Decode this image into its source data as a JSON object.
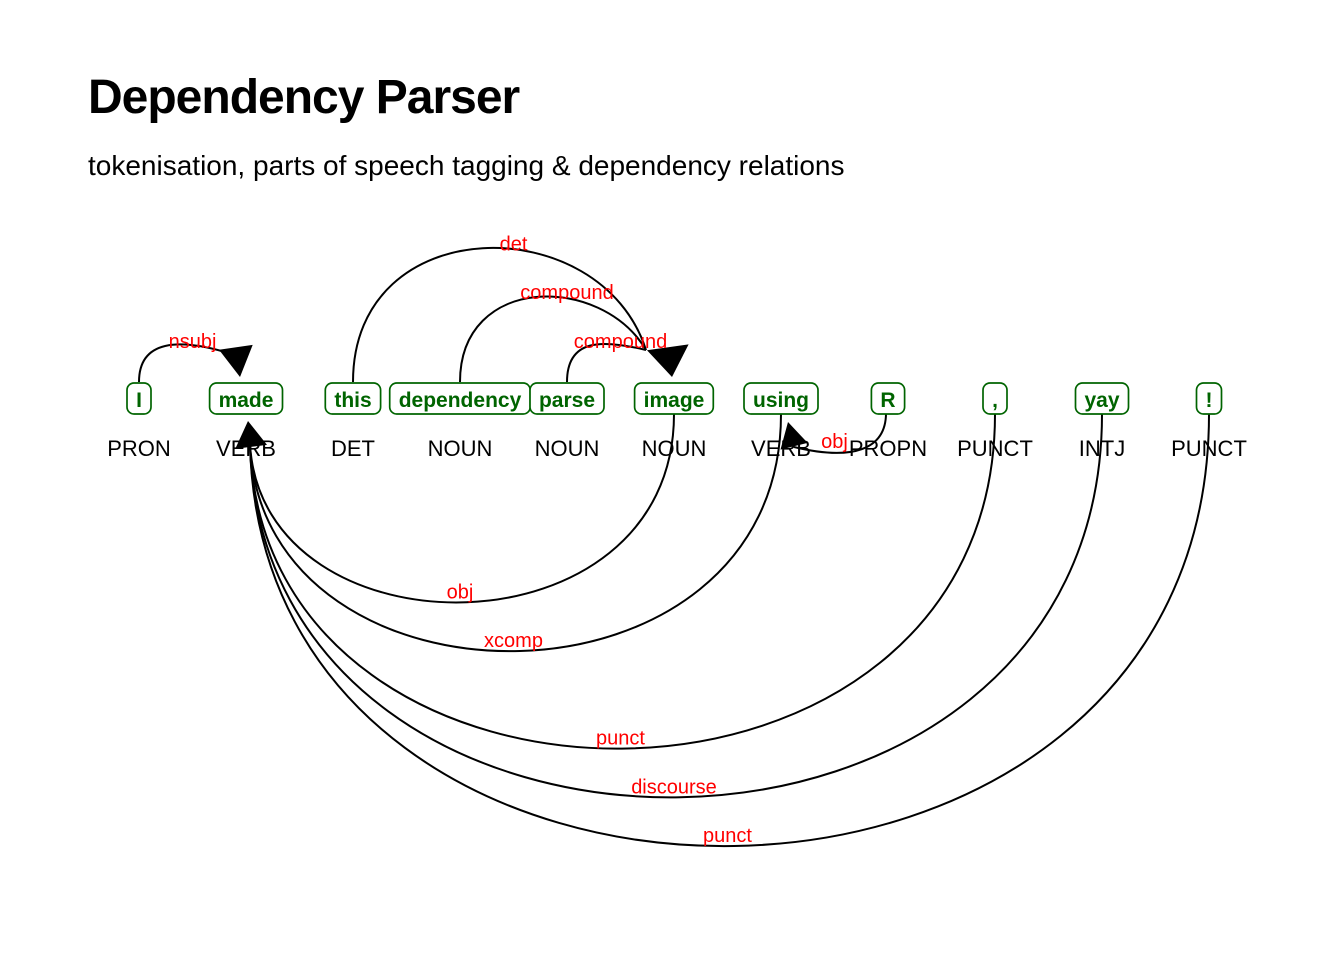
{
  "header": {
    "title": "Dependency Parser",
    "subtitle": "tokenisation, parts of speech tagging & dependency relations"
  },
  "colors": {
    "token_text": "#006400",
    "token_box_border": "#006400",
    "token_box_fill": "#ffffff",
    "pos_text": "#000000",
    "relation_label": "#ff0000",
    "arc_line": "#000000",
    "arrowhead": "#000000",
    "background": "#ffffff"
  },
  "tokens": [
    {
      "text": "I",
      "pos": "PRON"
    },
    {
      "text": "made",
      "pos": "VERB"
    },
    {
      "text": "this",
      "pos": "DET"
    },
    {
      "text": "dependency",
      "pos": "NOUN"
    },
    {
      "text": "parse",
      "pos": "NOUN"
    },
    {
      "text": "image",
      "pos": "NOUN"
    },
    {
      "text": "using",
      "pos": "VERB"
    },
    {
      "text": "R",
      "pos": "PROPN"
    },
    {
      "text": ",",
      "pos": "PUNCT"
    },
    {
      "text": "yay",
      "pos": "INTJ"
    },
    {
      "text": "!",
      "pos": "PUNCT"
    }
  ],
  "relations": [
    {
      "label": "nsubj",
      "from": "I",
      "to": "made",
      "from_index": 0,
      "to_index": 1,
      "side": "top"
    },
    {
      "label": "det",
      "from": "this",
      "to": "image",
      "from_index": 2,
      "to_index": 5,
      "side": "top"
    },
    {
      "label": "compound",
      "from": "dependency",
      "to": "image",
      "from_index": 3,
      "to_index": 5,
      "side": "top"
    },
    {
      "label": "compound",
      "from": "parse",
      "to": "image",
      "from_index": 4,
      "to_index": 5,
      "side": "top"
    },
    {
      "label": "obj",
      "from": "image",
      "to": "made",
      "from_index": 5,
      "to_index": 1,
      "side": "bottom"
    },
    {
      "label": "xcomp",
      "from": "using",
      "to": "made",
      "from_index": 6,
      "to_index": 1,
      "side": "bottom"
    },
    {
      "label": "obj",
      "from": "R",
      "to": "using",
      "from_index": 7,
      "to_index": 6,
      "side": "bottom"
    },
    {
      "label": "punct",
      "from": ",",
      "to": "made",
      "from_index": 8,
      "to_index": 1,
      "side": "bottom"
    },
    {
      "label": "discourse",
      "from": "yay",
      "to": "made",
      "from_index": 9,
      "to_index": 1,
      "side": "bottom"
    },
    {
      "label": "punct",
      "from": "!",
      "to": "made",
      "from_index": 10,
      "to_index": 1,
      "side": "bottom"
    }
  ]
}
